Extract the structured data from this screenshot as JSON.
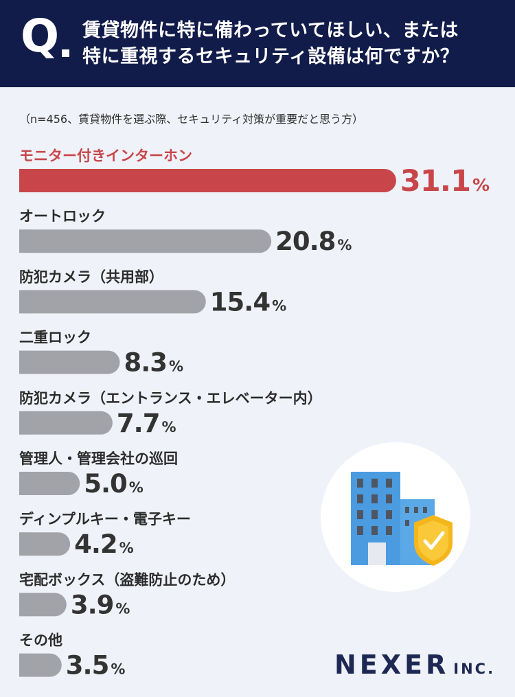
{
  "header": {
    "q_mark": "Q",
    "question_line1": "賃貸物件に特に備わっていてほしい、または",
    "question_line2": "特に重視するセキュリティ設備は何ですか？"
  },
  "note": "（n=456、賃貸物件を選ぶ際、セキュリティ対策が重要だと思う方）",
  "colors": {
    "header_bg": "#121c4a",
    "highlight": "#c8464a",
    "bar_default": "#a2a3a8",
    "background": "#f0f2f9"
  },
  "chart_data": {
    "type": "bar",
    "orientation": "horizontal",
    "unit": "%",
    "categories": [
      "モニター付きインターホン",
      "オートロック",
      "防犯カメラ（共用部）",
      "二重ロック",
      "防犯カメラ（エントランス・エレベーター内）",
      "管理人・管理会社の巡回",
      "ディンプルキー・電子キー",
      "宅配ボックス（盗難防止のため）",
      "その他"
    ],
    "values": [
      31.1,
      20.8,
      15.4,
      8.3,
      7.7,
      5.0,
      4.2,
      3.9,
      3.5
    ],
    "value_labels": [
      "31.1",
      "20.8",
      "15.4",
      "8.3",
      "7.7",
      "5.0",
      "4.2",
      "3.9",
      "3.5"
    ],
    "highlight_index": 0
  },
  "illustration": {
    "icon": "building-with-shield-icon"
  },
  "logo": {
    "name": "NEXER",
    "suffix": "INC."
  }
}
